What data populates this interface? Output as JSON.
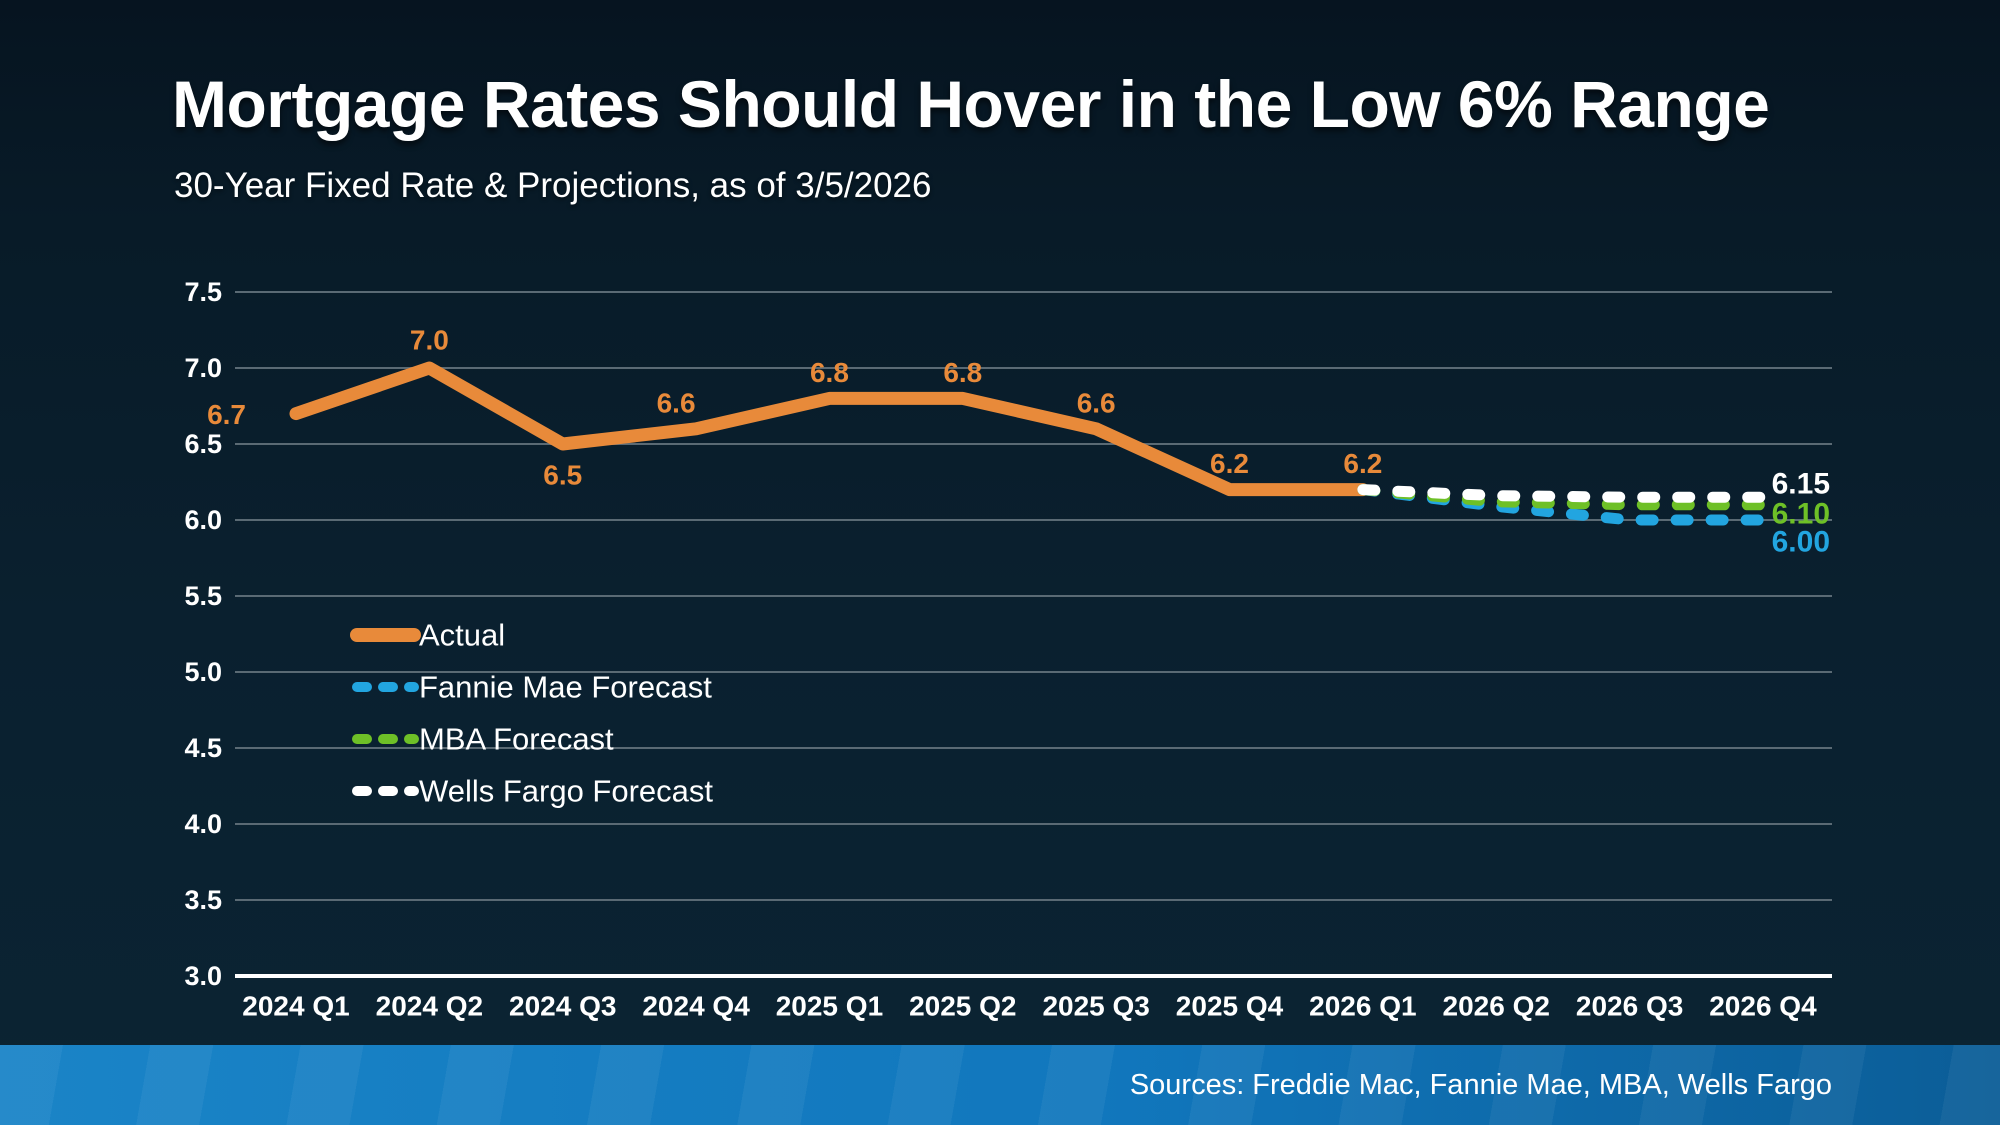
{
  "header": {
    "title": "Mortgage Rates Should Hover in the Low 6% Range",
    "subtitle": "30-Year Fixed Rate & Projections, as of 3/5/2026"
  },
  "chart_data": {
    "type": "line",
    "title": "Mortgage Rates Should Hover in the Low 6% Range",
    "subtitle": "30-Year Fixed Rate & Projections, as of 3/5/2026",
    "categories": [
      "2024 Q1",
      "2024 Q2",
      "2024 Q3",
      "2024 Q4",
      "2025 Q1",
      "2025 Q2",
      "2025 Q3",
      "2025 Q4",
      "2026 Q1",
      "2026 Q2",
      "2026 Q3",
      "2026 Q4"
    ],
    "ylim": [
      3.0,
      7.5
    ],
    "ytick_step": 0.5,
    "grid": true,
    "legend_position": "middle-left",
    "series": [
      {
        "name": "Actual",
        "color": "#e88a3a",
        "dash": false,
        "values": [
          6.7,
          7.0,
          6.5,
          6.6,
          6.8,
          6.8,
          6.6,
          6.2,
          6.2,
          null,
          null,
          null
        ],
        "point_labels": [
          "6.7",
          "7.0",
          "6.5",
          "6.6",
          "6.8",
          "6.8",
          "6.6",
          "6.2",
          "6.2"
        ]
      },
      {
        "name": "Fannie Mae Forecast",
        "color": "#22a5e0",
        "dash": true,
        "values": [
          null,
          null,
          null,
          null,
          null,
          null,
          null,
          null,
          6.2,
          6.09,
          6.0,
          6.0
        ],
        "end_label": "6.00"
      },
      {
        "name": "MBA Forecast",
        "color": "#6ec027",
        "dash": true,
        "values": [
          null,
          null,
          null,
          null,
          null,
          null,
          null,
          null,
          6.2,
          6.12,
          6.1,
          6.1
        ],
        "end_label": "6.10"
      },
      {
        "name": "Wells Fargo Forecast",
        "color": "#ffffff",
        "dash": true,
        "values": [
          null,
          null,
          null,
          null,
          null,
          null,
          null,
          null,
          6.2,
          6.16,
          6.15,
          6.15
        ],
        "end_label": "6.15"
      }
    ]
  },
  "footer": {
    "sources": "Sources: Freddie Mac, Fannie Mae, MBA, Wells Fargo"
  },
  "colors": {
    "background_top": "#061420",
    "background_bottom": "#0b2433",
    "gridline": "#5a6a74",
    "axis_line": "#ffffff",
    "footer_bar_left": "#1a84c7",
    "footer_bar_right": "#0b5d97",
    "accent_orange": "#e88a3a",
    "accent_blue": "#22a5e0",
    "accent_green": "#6ec027"
  }
}
